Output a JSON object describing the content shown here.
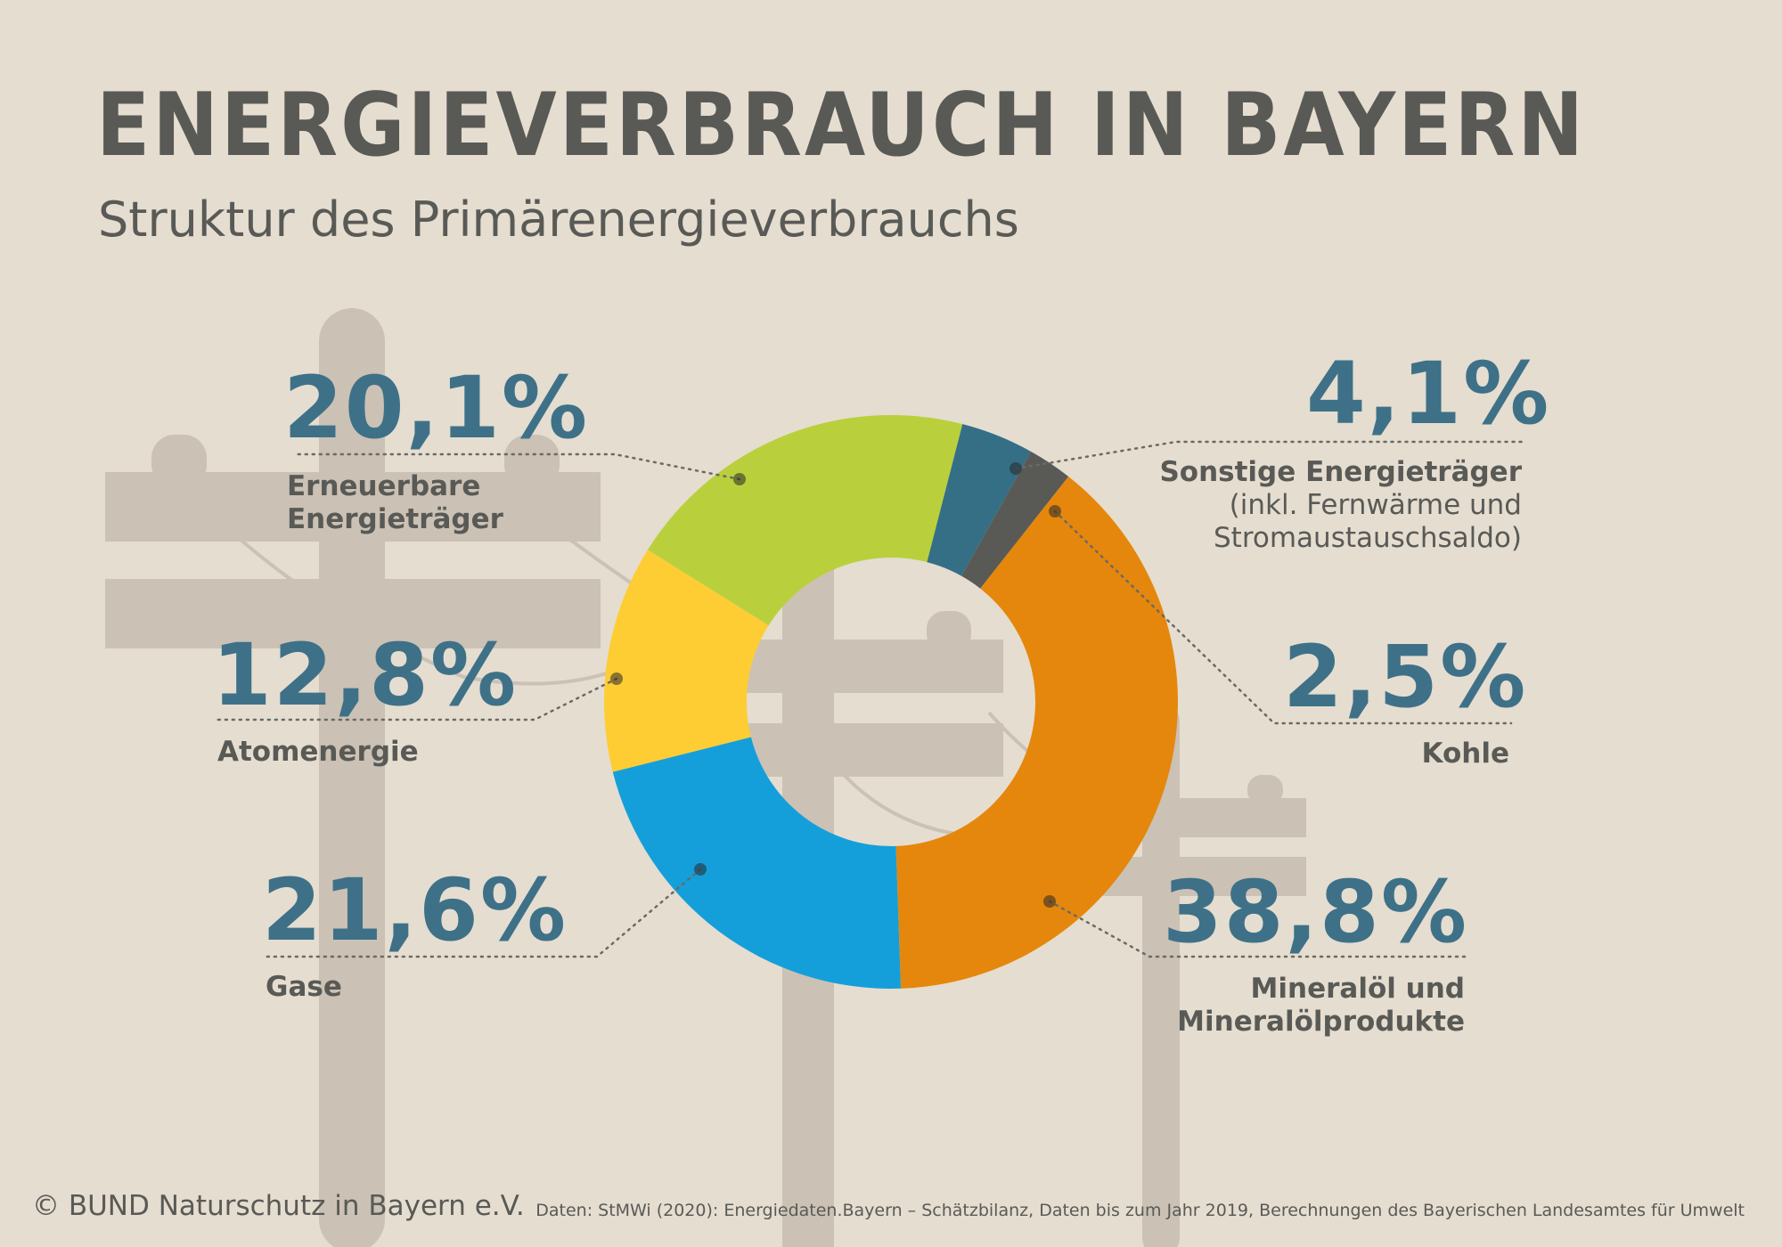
{
  "header": {
    "title": "ENERGIEVERBRAUCH IN BAYERN",
    "subtitle": "Struktur des Primärenergieverbrauchs"
  },
  "chart_data": {
    "type": "pie",
    "title": "ENERGIEVERBRAUCH IN BAYERN",
    "subtitle": "Struktur des Primärenergieverbrauchs",
    "donut": true,
    "unit": "%",
    "slices": [
      {
        "label": "Erneuerbare Energieträger",
        "value": 20.1,
        "display": "20,1%",
        "color": "#b9d03c"
      },
      {
        "label": "Sonstige Energieträger (inkl. Fernwärme und Stromaustauschsaldo)",
        "value": 4.1,
        "display": "4,1%",
        "color": "#346f86"
      },
      {
        "label": "Kohle",
        "value": 2.5,
        "display": "2,5%",
        "color": "#595a56"
      },
      {
        "label": "Mineralöl und Mineralölprodukte",
        "value": 38.8,
        "display": "38,8%",
        "color": "#e5870c"
      },
      {
        "label": "Gase",
        "value": 21.6,
        "display": "21,6%",
        "color": "#159fda"
      },
      {
        "label": "Atomenergie",
        "value": 12.8,
        "display": "12,8%",
        "color": "#fecd34"
      }
    ]
  },
  "labels": {
    "erneuerbare": {
      "pct": "20,1%",
      "line1": "Erneuerbare",
      "line2": "Energieträger"
    },
    "sonstige": {
      "pct": "4,1%",
      "line1": "Sonstige Energieträger",
      "line2": "(inkl. Fernwärme und",
      "line3": "Stromaustauschsaldo)"
    },
    "kohle": {
      "pct": "2,5%",
      "line1": "Kohle"
    },
    "mineraloel": {
      "pct": "38,8%",
      "line1": "Mineralöl und",
      "line2": "Mineralölprodukte"
    },
    "gase": {
      "pct": "21,6%",
      "line1": "Gase"
    },
    "atom": {
      "pct": "12,8%",
      "line1": "Atomenergie"
    }
  },
  "footer": {
    "copyright": "© BUND Naturschutz in Bayern e.V.",
    "source": "Daten: StMWi (2020): Energiedaten.Bayern – Schätzbilanz, Daten bis zum Jahr 2019, Berechnungen des Bayerischen Landesamtes für Umwelt"
  },
  "colors": {
    "background": "#e5ddd0",
    "poles": "#cbc1b5",
    "text_dark": "#595a56",
    "accent_blue": "#3e7188"
  }
}
